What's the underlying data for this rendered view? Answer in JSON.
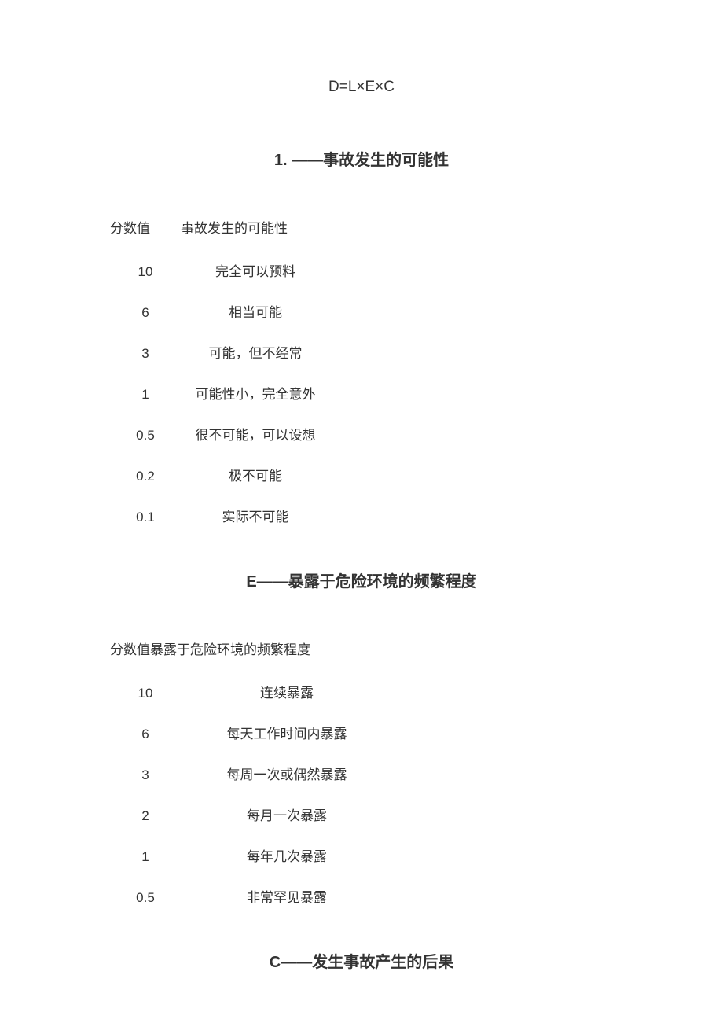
{
  "formula": "D=L×E×C",
  "section_l": {
    "title": "1. ——事故发生的可能性",
    "header_col1": "分数值",
    "header_col2": "事故发生的可能性",
    "rows": [
      {
        "score": "10",
        "desc": "完全可以预料"
      },
      {
        "score": "6",
        "desc": "相当可能"
      },
      {
        "score": "3",
        "desc": "可能，但不经常"
      },
      {
        "score": "1",
        "desc": "可能性小，完全意外"
      },
      {
        "score": "0.5",
        "desc": "很不可能，可以设想"
      },
      {
        "score": "0.2",
        "desc": "极不可能"
      },
      {
        "score": "0.1",
        "desc": "实际不可能"
      }
    ]
  },
  "section_e": {
    "title": "E——暴露于危险环境的频繁程度",
    "header": "分数值暴露于危险环境的频繁程度",
    "rows": [
      {
        "score": "10",
        "desc": "连续暴露"
      },
      {
        "score": "6",
        "desc": "每天工作时间内暴露"
      },
      {
        "score": "3",
        "desc": "每周一次或偶然暴露"
      },
      {
        "score": "2",
        "desc": "每月一次暴露"
      },
      {
        "score": "1",
        "desc": "每年几次暴露"
      },
      {
        "score": "0.5",
        "desc": "非常罕见暴露"
      }
    ]
  },
  "section_c": {
    "title": "C——发生事故产生的后果"
  }
}
